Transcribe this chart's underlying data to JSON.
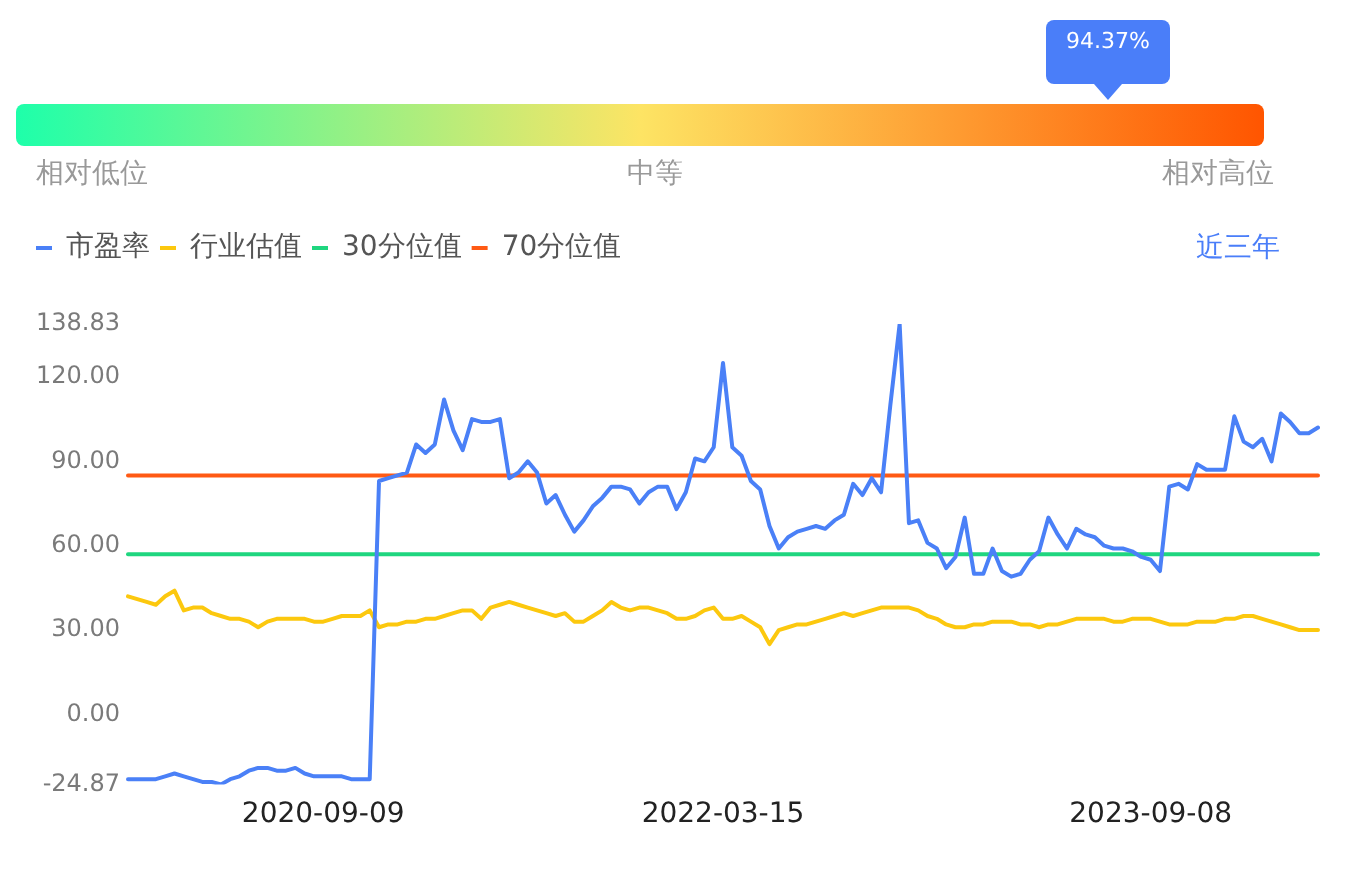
{
  "chart_data": [
    {
      "type": "other",
      "annotations": [
        "94.37%",
        "相对低位",
        "中等",
        "相对高位"
      ]
    },
    {
      "type": "line",
      "categories": [
        null,
        null,
        null,
        null,
        null,
        null,
        null,
        null,
        null,
        null,
        null,
        null,
        null,
        null,
        null,
        null,
        null,
        null,
        null,
        null,
        null,
        "2020-09-09",
        null,
        null,
        null,
        null,
        null,
        null,
        null,
        null,
        null,
        null,
        null,
        null,
        null,
        null,
        null,
        null,
        null,
        null,
        null,
        null,
        null,
        null,
        null,
        null,
        null,
        null,
        null,
        null,
        null,
        null,
        null,
        null,
        null,
        null,
        null,
        null,
        null,
        null,
        null,
        null,
        null,
        null,
        "2022-03-15",
        null,
        null,
        null,
        null,
        null,
        null,
        null,
        null,
        null,
        null,
        null,
        null,
        null,
        null,
        null,
        null,
        null,
        null,
        null,
        null,
        null,
        null,
        null,
        null,
        null,
        null,
        null,
        null,
        null,
        null,
        null,
        null,
        null,
        null,
        null,
        null,
        null,
        null,
        null,
        null,
        null,
        null,
        null,
        null,
        null,
        "2023-09-08",
        null,
        null,
        null,
        null,
        null,
        null,
        null,
        null,
        null,
        null,
        null,
        null,
        null,
        null,
        null,
        null,
        null,
        null
      ],
      "series": [
        {
          "name": "市盈率",
          "color": "#4a80f7",
          "values": [
            -23,
            -23,
            -23,
            -23,
            -22,
            -21,
            -22,
            -23,
            -24,
            -24,
            -24.87,
            -23,
            -22,
            -20,
            -19,
            -19,
            -20,
            -20,
            -19,
            -21,
            -22,
            -22,
            -22,
            -22,
            -23,
            -23,
            -23,
            83,
            84,
            85,
            86,
            96,
            93,
            96,
            112,
            101,
            94,
            105,
            104,
            104,
            105,
            84,
            86,
            90,
            86,
            75,
            78,
            71,
            65,
            69,
            74,
            77,
            81,
            81,
            80,
            75,
            79,
            81,
            81,
            73,
            79,
            91,
            90,
            95,
            125,
            95,
            92,
            83,
            80,
            67,
            59,
            63,
            65,
            66,
            67,
            66,
            69,
            71,
            82,
            78,
            84,
            79,
            110,
            138.83,
            68,
            69,
            61,
            59,
            52,
            56,
            70,
            50,
            50,
            59,
            51,
            49,
            50,
            55,
            58,
            70,
            64,
            59,
            66,
            64,
            63,
            60,
            59,
            59,
            58,
            56,
            55,
            51,
            81,
            82,
            80,
            89,
            87,
            87,
            87,
            106,
            97,
            95,
            98,
            90,
            107,
            104,
            100,
            100,
            102
          ]
        },
        {
          "name": "行业估值",
          "color": "#fcc80e",
          "values": [
            42,
            41,
            40,
            39,
            42,
            44,
            37,
            38,
            38,
            36,
            35,
            34,
            34,
            33,
            31,
            33,
            34,
            34,
            34,
            34,
            33,
            33,
            34,
            35,
            35,
            35,
            37,
            31,
            32,
            32,
            33,
            33,
            34,
            34,
            35,
            36,
            37,
            37,
            34,
            38,
            39,
            40,
            39,
            38,
            37,
            36,
            35,
            36,
            33,
            33,
            35,
            37,
            40,
            38,
            37,
            38,
            38,
            37,
            36,
            34,
            34,
            35,
            37,
            38,
            34,
            34,
            35,
            33,
            31,
            25,
            30,
            31,
            32,
            32,
            33,
            34,
            35,
            36,
            35,
            36,
            37,
            38,
            38,
            38,
            38,
            37,
            35,
            34,
            32,
            31,
            31,
            32,
            32,
            33,
            33,
            33,
            32,
            32,
            31,
            32,
            32,
            33,
            34,
            34,
            34,
            34,
            33,
            33,
            34,
            34,
            34,
            33,
            32,
            32,
            32,
            33,
            33,
            33,
            34,
            34,
            35,
            35,
            34,
            33,
            32,
            31,
            30,
            30,
            30
          ]
        },
        {
          "name": "30分位值",
          "color": "#1fd67f",
          "values": [
            57,
            57,
            57,
            57,
            57,
            57,
            57,
            57,
            57,
            57,
            57,
            57,
            57,
            57,
            57,
            57,
            57,
            57,
            57,
            57,
            57,
            57,
            57,
            57,
            57,
            57,
            57,
            57,
            57,
            57,
            57,
            57,
            57,
            57,
            57,
            57,
            57,
            57,
            57,
            57,
            57,
            57,
            57,
            57,
            57,
            57,
            57,
            57,
            57,
            57,
            57,
            57,
            57,
            57,
            57,
            57,
            57,
            57,
            57,
            57,
            57,
            57,
            57,
            57,
            57,
            57,
            57,
            57,
            57,
            57,
            57,
            57,
            57,
            57,
            57,
            57,
            57,
            57,
            57,
            57,
            57,
            57,
            57,
            57,
            57,
            57,
            57,
            57,
            57,
            57,
            57,
            57,
            57,
            57,
            57,
            57,
            57,
            57,
            57,
            57,
            57,
            57,
            57,
            57,
            57,
            57,
            57,
            57,
            57,
            57,
            57,
            57,
            57,
            57,
            57,
            57,
            57,
            57,
            57,
            57,
            57,
            57,
            57,
            57,
            57,
            57,
            57,
            57,
            57
          ]
        },
        {
          "name": "70分位值",
          "color": "#ff5a14",
          "values": [
            85,
            85,
            85,
            85,
            85,
            85,
            85,
            85,
            85,
            85,
            85,
            85,
            85,
            85,
            85,
            85,
            85,
            85,
            85,
            85,
            85,
            85,
            85,
            85,
            85,
            85,
            85,
            85,
            85,
            85,
            85,
            85,
            85,
            85,
            85,
            85,
            85,
            85,
            85,
            85,
            85,
            85,
            85,
            85,
            85,
            85,
            85,
            85,
            85,
            85,
            85,
            85,
            85,
            85,
            85,
            85,
            85,
            85,
            85,
            85,
            85,
            85,
            85,
            85,
            85,
            85,
            85,
            85,
            85,
            85,
            85,
            85,
            85,
            85,
            85,
            85,
            85,
            85,
            85,
            85,
            85,
            85,
            85,
            85,
            85,
            85,
            85,
            85,
            85,
            85,
            85,
            85,
            85,
            85,
            85,
            85,
            85,
            85,
            85,
            85,
            85,
            85,
            85,
            85,
            85,
            85,
            85,
            85,
            85,
            85,
            85,
            85,
            85,
            85,
            85,
            85,
            85,
            85,
            85,
            85,
            85,
            85,
            85,
            85,
            85,
            85,
            85,
            85,
            85
          ]
        }
      ],
      "ylim": [
        -24.87,
        138.83
      ],
      "yticks": [
        {
          "value": -24.87,
          "label": "-24.87"
        },
        {
          "value": 0,
          "label": "0.00"
        },
        {
          "value": 30,
          "label": "30.00"
        },
        {
          "value": 60,
          "label": "60.00"
        },
        {
          "value": 90,
          "label": "90.00"
        },
        {
          "value": 120,
          "label": "120.00"
        },
        {
          "value": 138.83,
          "label": "138.83"
        }
      ],
      "legend": "top left",
      "marker": "none",
      "annotations": [
        "近三年"
      ]
    }
  ]
}
